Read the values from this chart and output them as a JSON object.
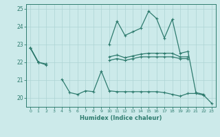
{
  "xlabel": "Humidex (Indice chaleur)",
  "x_values": [
    0,
    1,
    2,
    3,
    4,
    5,
    6,
    7,
    8,
    9,
    10,
    11,
    12,
    13,
    14,
    15,
    16,
    17,
    18,
    19,
    20,
    21,
    22,
    23
  ],
  "line_max": [
    22.8,
    22.0,
    null,
    null,
    null,
    null,
    null,
    null,
    null,
    null,
    23.0,
    24.3,
    23.5,
    23.7,
    23.9,
    24.85,
    24.45,
    23.35,
    24.4,
    22.5,
    22.6,
    20.3,
    20.2,
    null
  ],
  "line_upper": [
    22.8,
    22.0,
    21.9,
    null,
    null,
    null,
    null,
    null,
    null,
    null,
    22.3,
    22.4,
    22.25,
    22.35,
    22.45,
    22.5,
    22.5,
    22.5,
    22.5,
    22.3,
    22.3,
    null,
    null,
    null
  ],
  "line_lower": [
    22.8,
    22.0,
    21.85,
    null,
    null,
    null,
    null,
    null,
    null,
    null,
    22.1,
    22.2,
    22.1,
    22.2,
    22.3,
    22.3,
    22.3,
    22.3,
    22.3,
    22.2,
    22.2,
    null,
    null,
    null
  ],
  "line_min": [
    22.8,
    22.0,
    null,
    null,
    21.05,
    20.3,
    20.2,
    20.4,
    20.35,
    21.5,
    20.4,
    20.35,
    20.35,
    20.35,
    20.35,
    20.35,
    20.35,
    20.3,
    20.2,
    20.1,
    20.25,
    20.25,
    20.15,
    19.7
  ],
  "ylim": [
    19.5,
    25.25
  ],
  "xlim": [
    -0.5,
    23.5
  ],
  "yticks": [
    20,
    21,
    22,
    23,
    24,
    25
  ],
  "xticks": [
    0,
    1,
    2,
    3,
    4,
    5,
    6,
    7,
    8,
    9,
    10,
    11,
    12,
    13,
    14,
    15,
    16,
    17,
    18,
    19,
    20,
    21,
    22,
    23
  ],
  "line_color": "#2e7b6e",
  "bg_color": "#cceaea",
  "grid_color": "#add4d4"
}
